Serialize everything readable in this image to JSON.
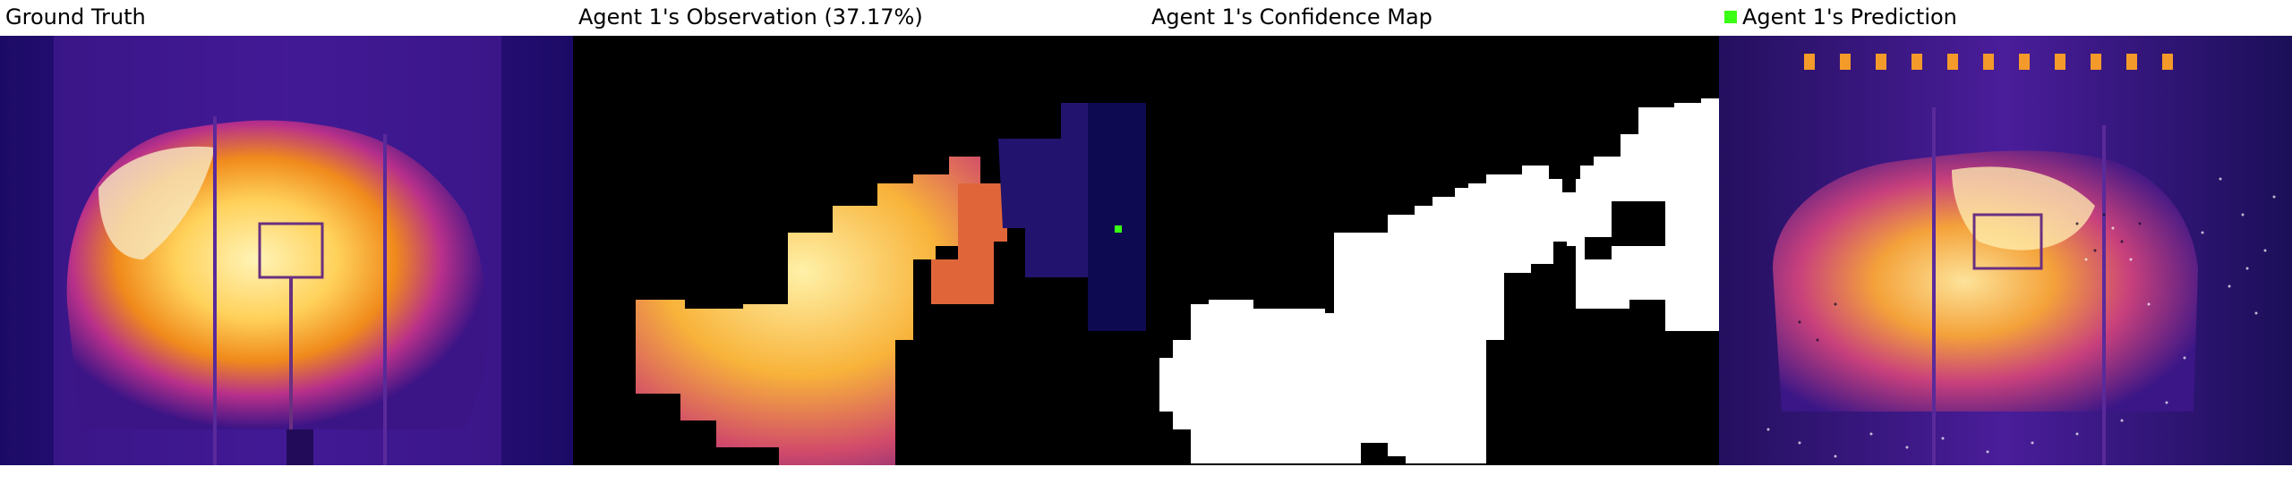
{
  "panels": [
    {
      "title": "Ground Truth",
      "image": "thermal-fire-ground-truth"
    },
    {
      "title": "Agent 1's Observation (37.17%)",
      "image": "thermal-fire-partial-observation"
    },
    {
      "title": "Agent 1's Confidence Map",
      "image": "binary-confidence-mask"
    },
    {
      "title": "Agent 1's Prediction",
      "image": "thermal-fire-prediction",
      "legend_marker": "green-square-icon"
    }
  ],
  "colors": {
    "background": "#ffffff",
    "mask_black": "#000000",
    "mask_white": "#ffffff",
    "agent_marker": "#39ff14",
    "heat_low": "#1a0a5c",
    "heat_mid": "#8a1fa0",
    "heat_high": "#f39a1e",
    "heat_peak": "#fff1a8"
  }
}
